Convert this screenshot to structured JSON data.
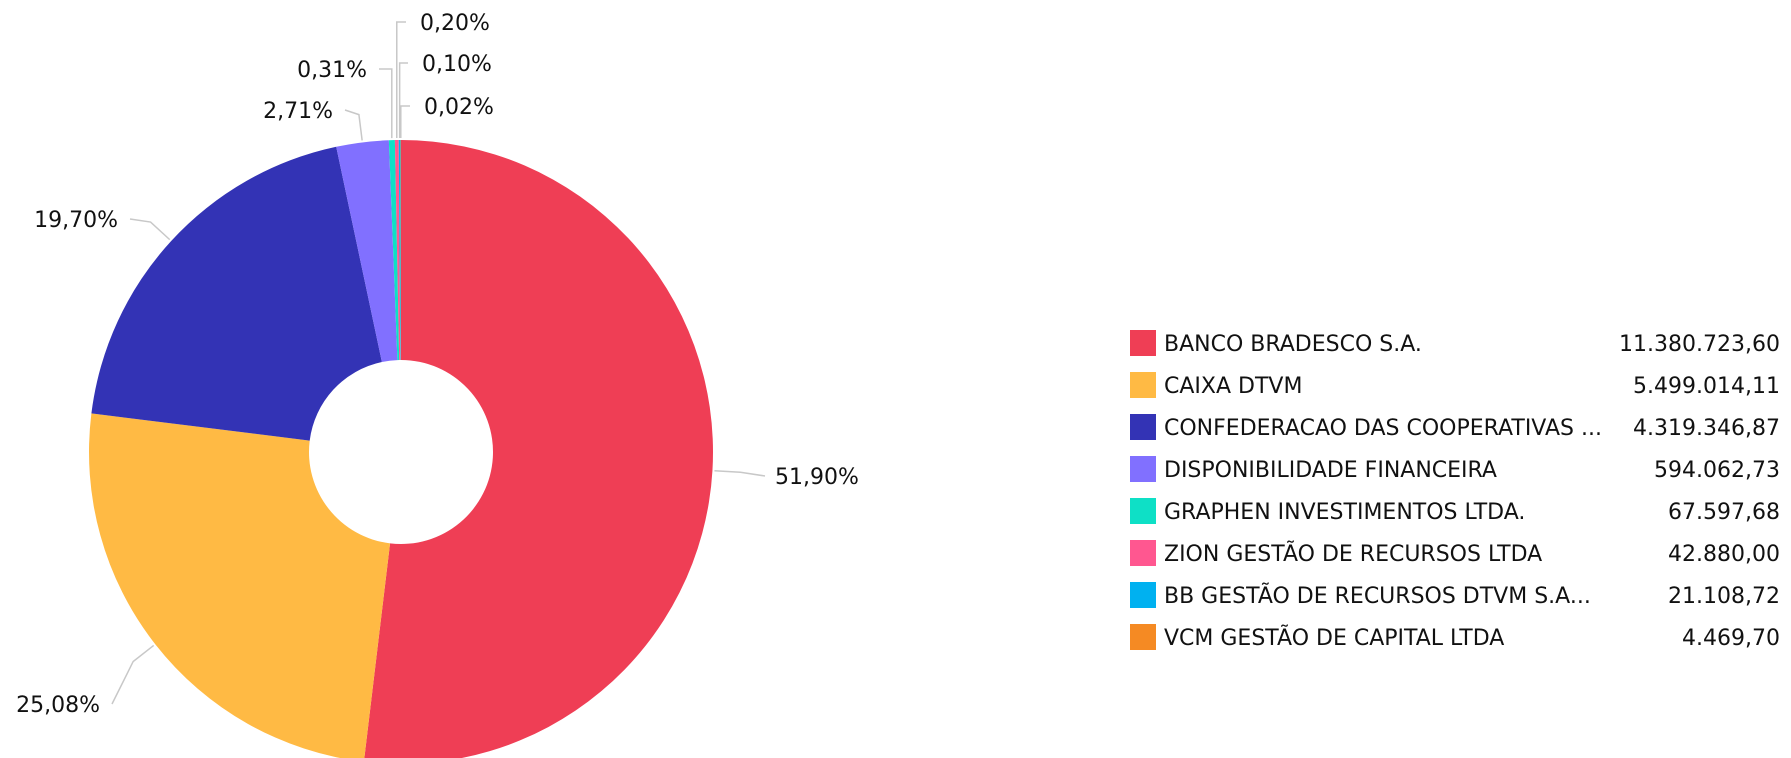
{
  "chart_data": {
    "type": "pie",
    "donut": true,
    "slices": [
      {
        "name": "BANCO BRADESCO S.A.",
        "value": 11380723.6,
        "value_label": "11.380.723,60",
        "percent_label": "51,90%",
        "color": "#EF3E55"
      },
      {
        "name": "CAIXA DTVM",
        "value": 5499014.11,
        "value_label": "5.499.014,11",
        "percent_label": "25,08%",
        "color": "#FFBA44"
      },
      {
        "name": "CONFEDERACAO DAS COOPERATIVAS ...",
        "value": 4319346.87,
        "value_label": "4.319.346,87",
        "percent_label": "19,70%",
        "color": "#3333B5"
      },
      {
        "name": "DISPONIBILIDADE FINANCEIRA",
        "value": 594062.73,
        "value_label": "594.062,73",
        "percent_label": "2,71%",
        "color": "#8170FF"
      },
      {
        "name": "GRAPHEN INVESTIMENTOS LTDA.",
        "value": 67597.68,
        "value_label": "67.597,68",
        "percent_label": "0,31%",
        "color": "#0EE0C6"
      },
      {
        "name": "ZION GESTÃO DE RECURSOS LTDA",
        "value": 42880.0,
        "value_label": "42.880,00",
        "percent_label": "0,20%",
        "color": "#FF5790"
      },
      {
        "name": "BB GESTÃO DE RECURSOS DTVM S.A...",
        "value": 21108.72,
        "value_label": "21.108,72",
        "percent_label": "0,10%",
        "color": "#00B1F0"
      },
      {
        "name": "VCM GESTÃO DE CAPITAL LTDA",
        "value": 4469.7,
        "value_label": "4.469,70",
        "percent_label": "0,02%",
        "color": "#F58A23"
      }
    ],
    "legend_position": "right"
  }
}
